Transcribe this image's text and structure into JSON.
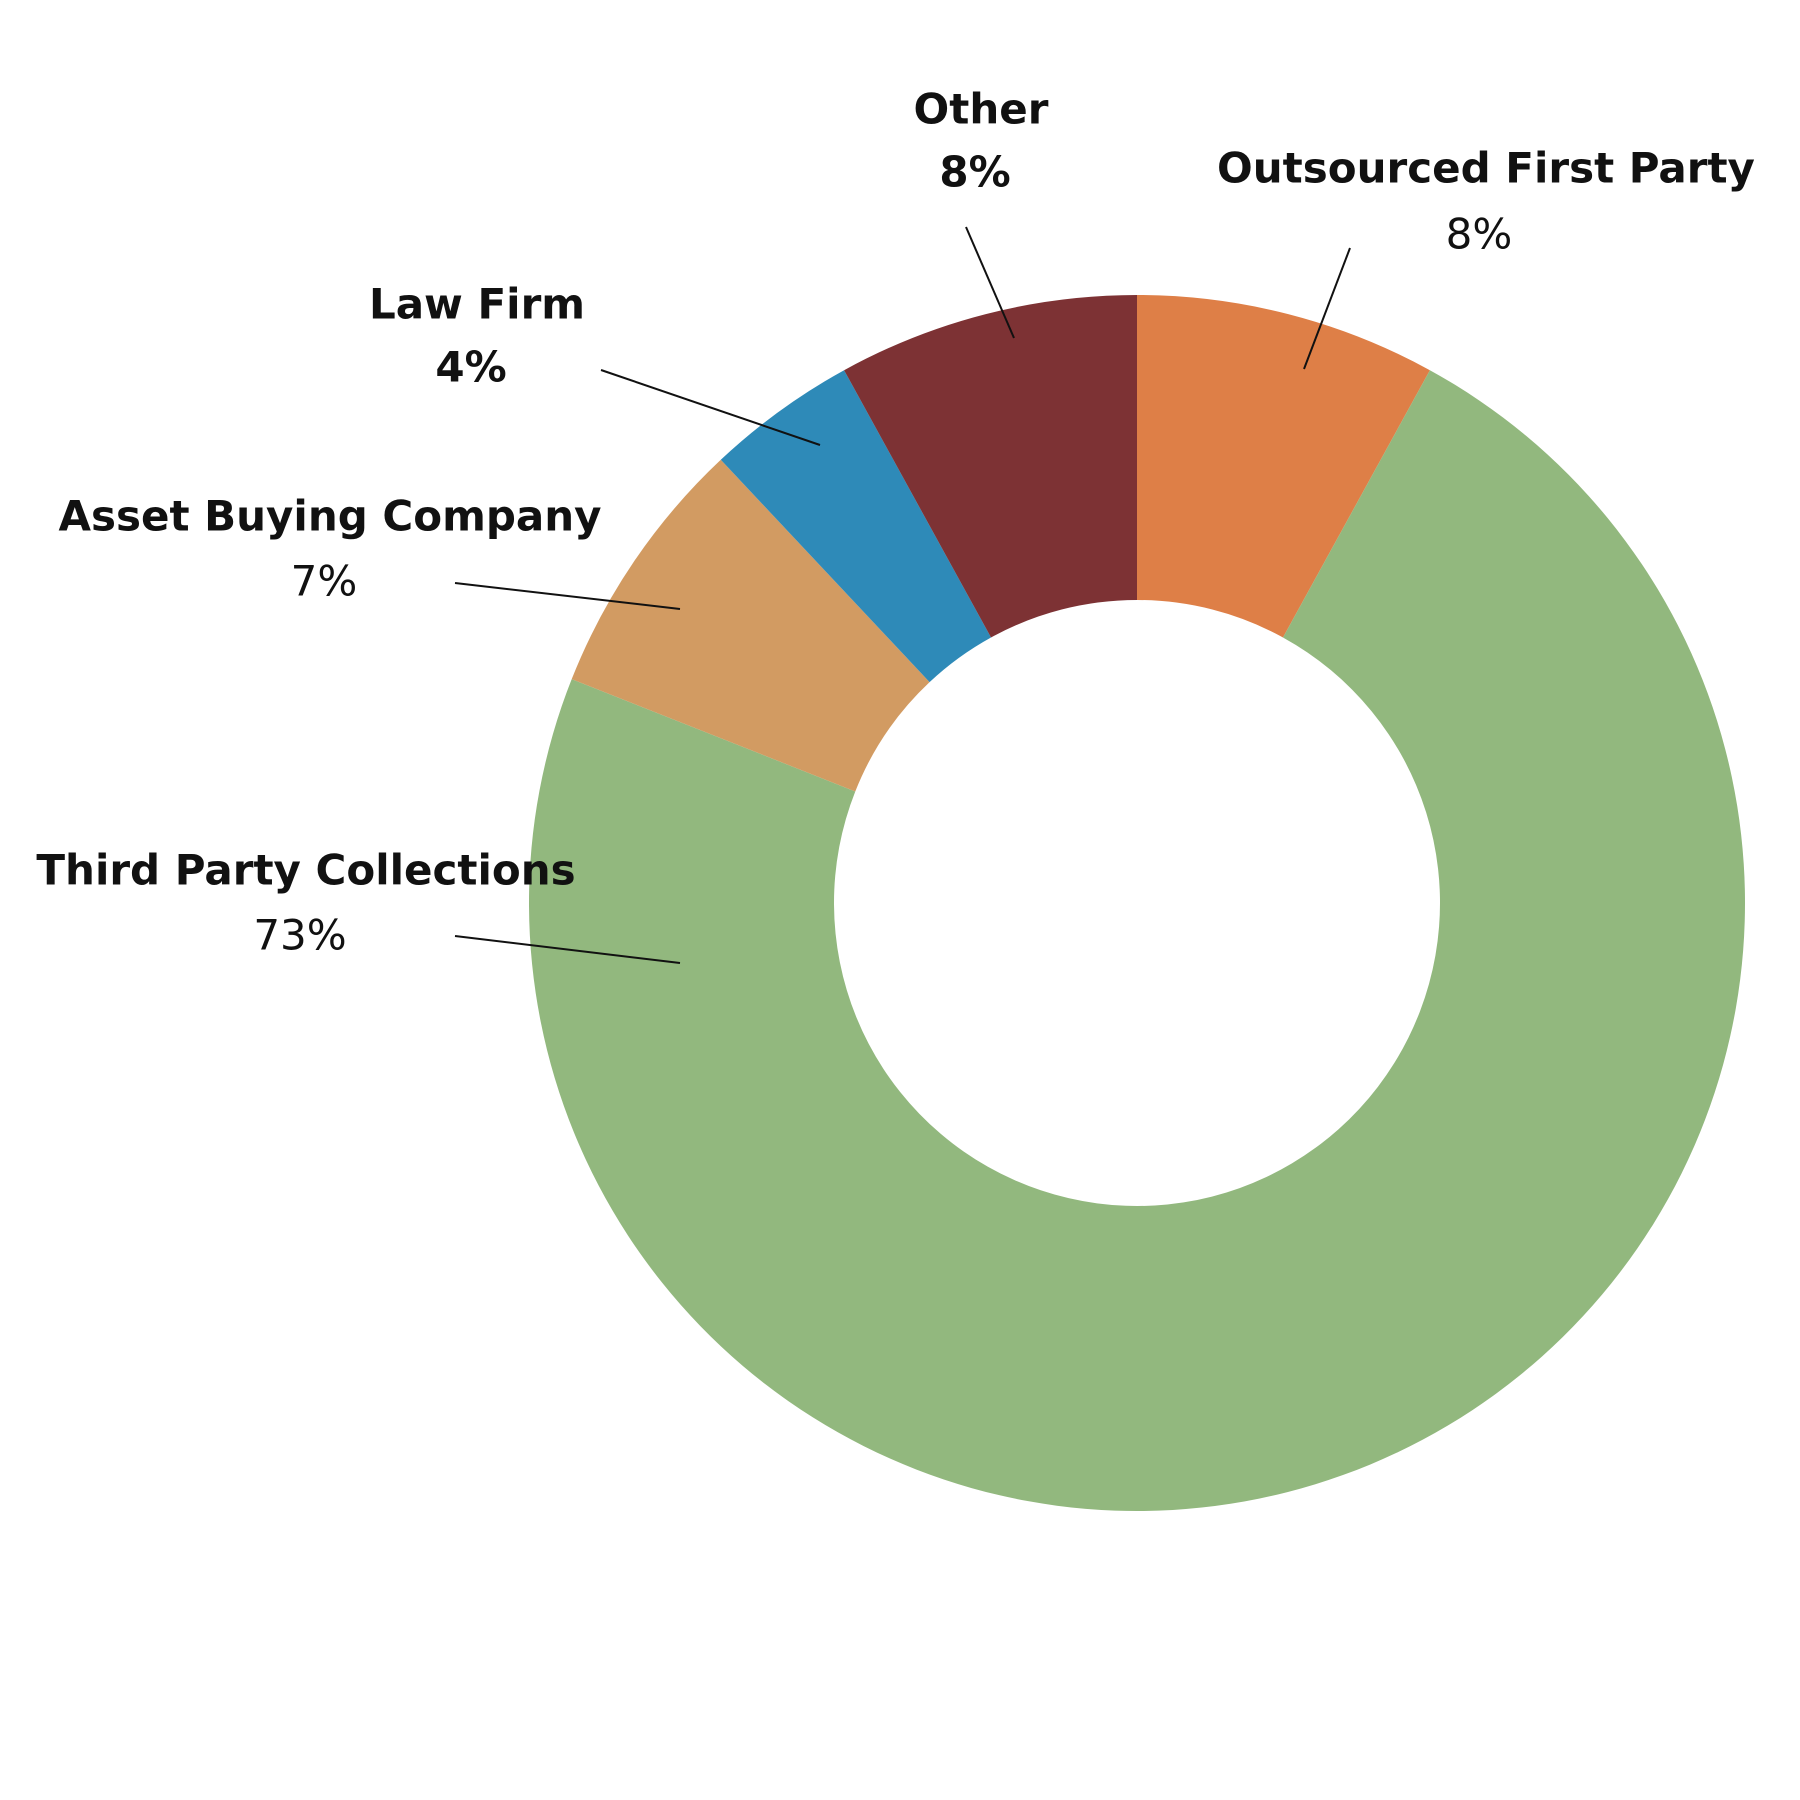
{
  "chart_data": {
    "type": "donut",
    "categories": [
      "Outsourced First Party",
      "Third Party Collections",
      "Asset Buying Company",
      "Law Firm",
      "Other"
    ],
    "values": [
      8,
      73,
      7,
      4,
      8
    ],
    "value_labels": [
      "8%",
      "73%",
      "7%",
      "4%",
      "8%"
    ],
    "colors": [
      "#de7f47",
      "#92b87e",
      "#d29b62",
      "#2e8ab8",
      "#7d3234"
    ]
  }
}
